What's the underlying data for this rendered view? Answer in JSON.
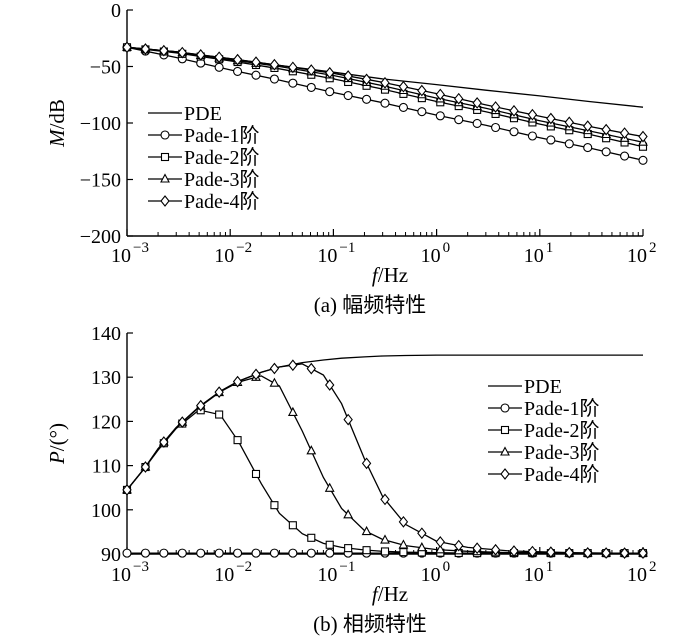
{
  "chart_data": [
    {
      "type": "line",
      "panel": "a",
      "caption": "(a) 幅频特性",
      "xlabel_italic": "f",
      "xlabel_unit": "/Hz",
      "ylabel_italic": "M",
      "ylabel_unit": "/dB",
      "x_scale": "log",
      "xlim": [
        0.001,
        100
      ],
      "ylim": [
        -200,
        0
      ],
      "x_ticks": [
        {
          "base": "10",
          "exp": "−3"
        },
        {
          "base": "10",
          "exp": "−2"
        },
        {
          "base": "10",
          "exp": "−1"
        },
        {
          "base": "10",
          "exp": "0"
        },
        {
          "base": "10",
          "exp": "1"
        },
        {
          "base": "10",
          "exp": "2"
        }
      ],
      "y_ticks": [
        "0",
        "−50",
        "−100",
        "−150",
        "−200"
      ],
      "legend_position": "left",
      "x": [
        0.001,
        0.003,
        0.01,
        0.03,
        0.1,
        0.3,
        1,
        3,
        10,
        30,
        100
      ],
      "series": [
        {
          "name": "PDE",
          "marker": "none",
          "y": [
            -33,
            -37,
            -43,
            -49,
            -55,
            -61,
            -66,
            -71,
            -76,
            -81,
            -86
          ]
        },
        {
          "name": "Pade-1阶",
          "marker": "circle",
          "y": [
            -33,
            -42,
            -53,
            -62,
            -73,
            -82,
            -93,
            -102,
            -113,
            -122,
            -133
          ]
        },
        {
          "name": "Pade-2阶",
          "marker": "square",
          "y": [
            -33,
            -38,
            -45,
            -52,
            -61,
            -70,
            -81,
            -90,
            -101,
            -110,
            -121
          ]
        },
        {
          "name": "Pade-3阶",
          "marker": "triangle",
          "y": [
            -33,
            -37,
            -44,
            -50,
            -58,
            -67,
            -78,
            -87,
            -98,
            -107,
            -117
          ]
        },
        {
          "name": "Pade-4阶",
          "marker": "diamond",
          "y": [
            -33,
            -37,
            -43,
            -49,
            -56,
            -64,
            -74,
            -84,
            -94,
            -103,
            -112
          ]
        }
      ]
    },
    {
      "type": "line",
      "panel": "b",
      "caption": "(b) 相频特性",
      "xlabel_italic": "f",
      "xlabel_unit": "/Hz",
      "ylabel_italic": "P",
      "ylabel_unit": "/(°)",
      "x_scale": "log",
      "xlim": [
        0.001,
        100
      ],
      "ylim": [
        90,
        140
      ],
      "x_ticks": [
        {
          "base": "10",
          "exp": "−3"
        },
        {
          "base": "10",
          "exp": "−2"
        },
        {
          "base": "10",
          "exp": "−1"
        },
        {
          "base": "10",
          "exp": "0"
        },
        {
          "base": "10",
          "exp": "1"
        },
        {
          "base": "10",
          "exp": "2"
        }
      ],
      "y_ticks": [
        "90",
        "100",
        "110",
        "120",
        "130",
        "140"
      ],
      "legend_position": "right",
      "x": [
        0.001,
        0.0015,
        0.002,
        0.003,
        0.005,
        0.008,
        0.012,
        0.02,
        0.03,
        0.05,
        0.08,
        0.12,
        0.2,
        0.3,
        0.5,
        1,
        2,
        5,
        10,
        20,
        50,
        100
      ],
      "series": [
        {
          "name": "PDE",
          "marker": "none",
          "y": [
            104.5,
            109.6,
            113.8,
            118.6,
            123.3,
            126.8,
            129.1,
            131.1,
            132.3,
            133.3,
            133.9,
            134.3,
            134.6,
            134.8,
            134.9,
            135,
            135,
            135,
            135,
            135,
            135,
            135
          ]
        },
        {
          "name": "Pade-1阶",
          "marker": "circle",
          "y": [
            90.2,
            90.2,
            90.2,
            90.2,
            90.2,
            90.2,
            90.2,
            90.2,
            90.2,
            90.2,
            90.2,
            90.2,
            90.2,
            90.2,
            90.2,
            90.2,
            90.2,
            90.2,
            90.2,
            90.2,
            90.2,
            90.2
          ]
        },
        {
          "name": "Pade-2阶",
          "marker": "square",
          "y": [
            104.5,
            109.6,
            113.5,
            118.4,
            122.6,
            121.5,
            115.5,
            105.9,
            99.2,
            94.6,
            92.4,
            91.5,
            90.9,
            90.6,
            90.4,
            90.3,
            90.2,
            90.2,
            90.2,
            90.2,
            90.2,
            90.2
          ]
        },
        {
          "name": "Pade-3阶",
          "marker": "triangle",
          "y": [
            104.5,
            109.6,
            113.8,
            118.6,
            123.2,
            126.7,
            128.9,
            130.3,
            128.0,
            117.8,
            107.3,
            100.3,
            95.3,
            93.3,
            91.9,
            91.0,
            90.6,
            90.3,
            90.3,
            90.2,
            90.2,
            90.2
          ]
        },
        {
          "name": "Pade-4阶",
          "marker": "diamond",
          "y": [
            104.5,
            109.6,
            113.8,
            118.6,
            123.3,
            126.8,
            129.1,
            131.1,
            132.3,
            133.0,
            130.5,
            124.0,
            111.5,
            103.0,
            96.7,
            92.9,
            91.5,
            90.7,
            90.5,
            90.3,
            90.2,
            90.2
          ]
        }
      ]
    }
  ]
}
